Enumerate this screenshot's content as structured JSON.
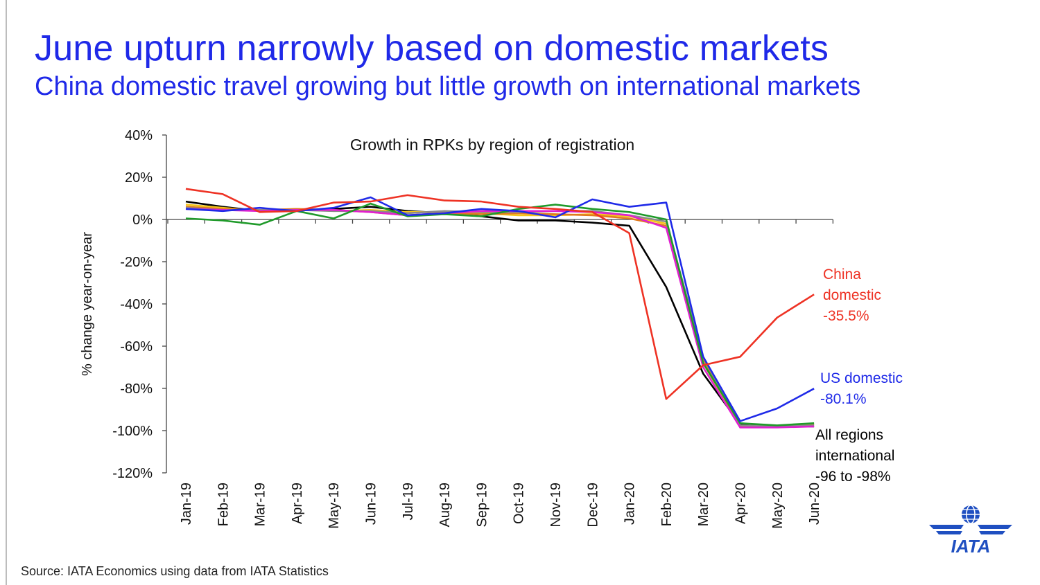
{
  "header": {
    "title": "June upturn narrowly based on domestic markets",
    "subtitle": "China domestic travel growing but little growth on international markets"
  },
  "source": "Source: IATA Economics using data from IATA Statistics",
  "logo_text": "IATA",
  "chart_data": {
    "type": "line",
    "title": "Growth in RPKs by region of registration",
    "ylabel": "% change year-on-year",
    "ylim": [
      -120,
      40
    ],
    "yticks": [
      40,
      20,
      0,
      -20,
      -40,
      -60,
      -80,
      -100,
      -120
    ],
    "ytick_labels": [
      "40%",
      "20%",
      "0%",
      "-20%",
      "-40%",
      "-60%",
      "-80%",
      "-100%",
      "-120%"
    ],
    "categories": [
      "Jan-19",
      "Feb-19",
      "Mar-19",
      "Apr-19",
      "May-19",
      "Jun-19",
      "Jul-19",
      "Aug-19",
      "Sep-19",
      "Oct-19",
      "Nov-19",
      "Dec-19",
      "Jan-20",
      "Feb-20",
      "Mar-20",
      "Apr-20",
      "May-20",
      "Jun-20"
    ],
    "series": [
      {
        "name": "All regions international",
        "color": "#000000",
        "values": [
          8.5,
          6,
          4,
          4.5,
          5,
          6,
          4,
          3,
          1.5,
          -0.5,
          -0.5,
          -1.5,
          -3,
          -32,
          -73,
          -97,
          -98,
          -98
        ]
      },
      {
        "name": "",
        "color": "#f5c518",
        "values": [
          7,
          5.5,
          4,
          5,
          4,
          4.5,
          3.5,
          3.5,
          3,
          2,
          2,
          2.5,
          1.5,
          -2,
          -68,
          -98,
          -98,
          -97
        ]
      },
      {
        "name": "",
        "color": "#e07a1f",
        "values": [
          6,
          5,
          4.5,
          5,
          4.5,
          3.5,
          2,
          3,
          2.5,
          3,
          2.5,
          2,
          0.5,
          -3,
          -66,
          -98,
          -98,
          -97
        ]
      },
      {
        "name": "",
        "color": "#8a8a8a",
        "values": [
          5.5,
          4.5,
          4.5,
          4.5,
          4,
          4,
          3,
          4,
          3.5,
          3.5,
          4,
          4,
          2,
          -1,
          -65,
          -97.5,
          -98,
          -97.5
        ]
      },
      {
        "name": "",
        "color": "#e020d0",
        "values": [
          5,
          4.5,
          4,
          4.5,
          4.5,
          3.5,
          2,
          3,
          4,
          4,
          4,
          3.5,
          2,
          -4,
          -70,
          -98.5,
          -98.5,
          -98
        ]
      },
      {
        "name": "",
        "color": "#1f9a2a",
        "values": [
          0.5,
          -0.5,
          -2.5,
          4,
          0.5,
          7.5,
          1.5,
          2.5,
          1.5,
          5,
          7,
          5,
          3.5,
          0,
          -68,
          -96.5,
          -97.5,
          -96.5
        ]
      },
      {
        "name": "US domestic",
        "color": "#1f2ae8",
        "values": [
          5,
          4,
          5.5,
          4,
          5.5,
          10.5,
          2,
          3,
          5,
          4,
          1,
          9.5,
          6,
          8,
          -65,
          -95.5,
          -89.5,
          -80.1
        ]
      },
      {
        "name": "China domestic",
        "color": "#ee3224",
        "values": [
          14.5,
          12,
          3.5,
          4,
          8,
          8.5,
          11.5,
          9,
          8.5,
          6,
          5,
          3.5,
          -6.5,
          -85,
          -69,
          -65,
          -46.5,
          -35.5
        ]
      }
    ],
    "annotations": [
      {
        "lines": [
          "China",
          "domestic",
          "-35.5%"
        ],
        "color": "#ee3224"
      },
      {
        "lines": [
          "US domestic",
          "-80.1%"
        ],
        "color": "#1f2ae8"
      },
      {
        "lines": [
          "All regions",
          "international",
          "-96 to -98%"
        ],
        "color": "#000000"
      }
    ]
  }
}
